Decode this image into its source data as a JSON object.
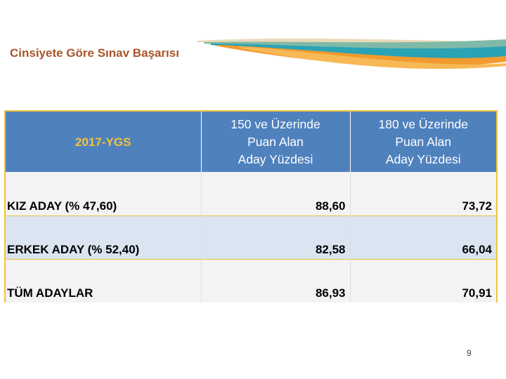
{
  "slide": {
    "title": "Cinsiyete Göre Sınav Başarısı",
    "page_number": "9",
    "colors": {
      "title": "#a8552b",
      "header_bg": "#4f81bd",
      "header_corner_text": "#f2c23a",
      "border": "#f0c23b",
      "swoosh_orange": "#f29a2e",
      "swoosh_teal": "#2aa3b5"
    }
  },
  "table": {
    "corner_header": "2017-YGS",
    "columns": [
      {
        "lines": [
          "150 ve Üzerinde",
          "Puan Alan",
          "Aday Yüzdesi"
        ]
      },
      {
        "lines": [
          "180 ve Üzerinde",
          "Puan Alan",
          "Aday Yüzdesi"
        ]
      }
    ],
    "rows": [
      {
        "label": "KIZ ADAY (% 47,60)",
        "values": [
          "88,60",
          "73,72"
        ]
      },
      {
        "label": "ERKEK ADAY (% 52,40)",
        "values": [
          "82,58",
          "66,04"
        ]
      },
      {
        "label": "TÜM ADAYLAR",
        "values": [
          "86,93",
          "70,91"
        ]
      }
    ]
  }
}
